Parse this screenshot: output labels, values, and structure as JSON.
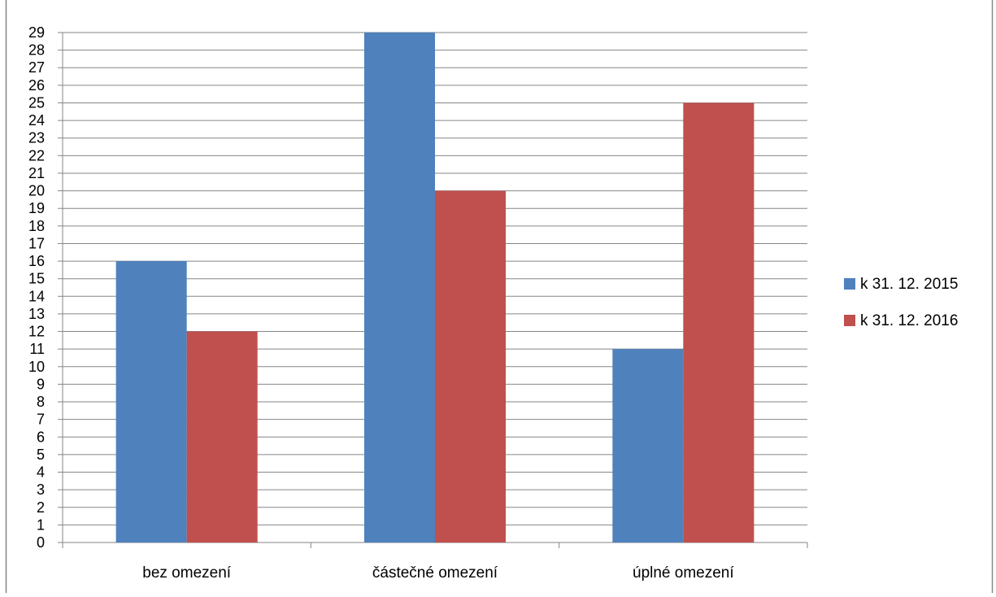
{
  "chart_data": {
    "type": "bar",
    "categories": [
      "bez omezení",
      "částečné omezení",
      "úplné omezení"
    ],
    "series": [
      {
        "name": "k 31. 12. 2015",
        "color": "#4f81bd",
        "values": [
          16,
          29,
          11
        ]
      },
      {
        "name": "k 31. 12. 2016",
        "color": "#c0504d",
        "values": [
          12,
          20,
          25
        ]
      }
    ],
    "ylim": [
      0,
      29
    ],
    "ytick_step": 1,
    "grid": true,
    "legend_position": "right",
    "title": "",
    "xlabel": "",
    "ylabel": ""
  }
}
